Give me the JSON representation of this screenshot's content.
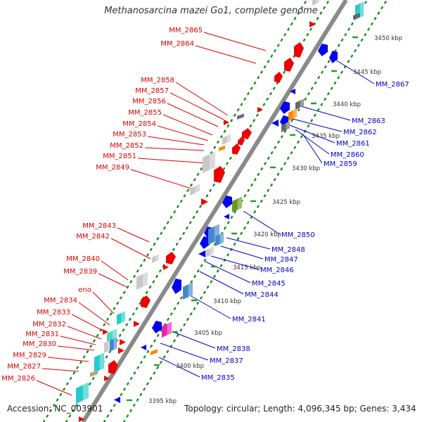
{
  "title": "Methanosarcina mazei Go1, complete genome",
  "footer": {
    "accession": "Accession: NC_003901",
    "topology": "Topology: circular; Length: 4,096,345 bp; Genes: 3,434"
  },
  "colors": {
    "backbone": "#8a8a8a",
    "dots": "#1f8f1f",
    "tick": "#2a9a2a",
    "red_label": "#e00000",
    "blue_label": "#0000cc",
    "red_gene": "#ee0000",
    "blue_gene": "#0000ee",
    "grey_gene": "#c8c8c8",
    "dark_gene": "#666666",
    "cyan_gene": "#22cccc",
    "orange_gene": "#ff8800",
    "olive_gene": "#669922",
    "magenta_gene": "#ee22aa",
    "steel_gene": "#4488cc",
    "purple_gene": "#6666aa",
    "tan_gene": "#b8a878",
    "mint_gene": "#44ddbb"
  },
  "scale": {
    "ticks": [
      {
        "label": "3395 kbp"
      },
      {
        "label": "3400 kbp"
      },
      {
        "label": "3405 kbp"
      },
      {
        "label": "3410 kbp"
      },
      {
        "label": "3415 kbp"
      },
      {
        "label": "3420 kbp"
      },
      {
        "label": "3425 kbp"
      },
      {
        "label": "3430 kbp"
      },
      {
        "label": "3435 kbp"
      },
      {
        "label": "3440 kbp"
      },
      {
        "label": "3445 kbp"
      },
      {
        "label": "3450 kbp"
      }
    ]
  },
  "labels_left": [
    "MM_2865",
    "MM_2864",
    "MM_2858",
    "MM_2857",
    "MM_2856",
    "MM_2855",
    "MM_2854",
    "MM_2853",
    "MM_2852",
    "MM_2851",
    "MM_2849",
    "MM_2843",
    "MM_2842",
    "MM_2840",
    "MM_2839",
    "eno",
    "MM_2834",
    "MM_2833",
    "MM_2832",
    "MM_2831",
    "MM_2830",
    "MM_2829",
    "MM_2827",
    "MM_2826"
  ],
  "labels_right": [
    "MM_2867",
    "MM_2863",
    "MM_2862",
    "MM_2861",
    "MM_2860",
    "MM_2859",
    "MM_2850",
    "MM_2848",
    "MM_2847",
    "MM_2846",
    "MM_2845",
    "MM_2844",
    "MM_2841",
    "MM_2838",
    "MM_2837",
    "MM_2835"
  ]
}
